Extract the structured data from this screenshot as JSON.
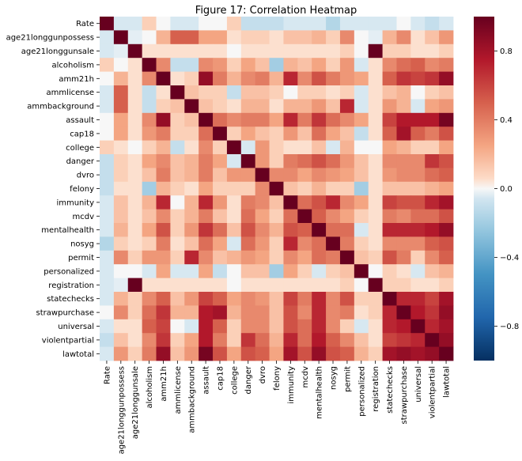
{
  "chart_data": {
    "type": "heatmap",
    "title": "Figure 17: Correlation Heatmap",
    "xlabel": "",
    "ylabel": "",
    "labels": [
      "Rate",
      "age21longgunpossess",
      "age21longgunsale",
      "alcoholism",
      "amm21h",
      "ammlicense",
      "ammbackground",
      "assault",
      "cap18",
      "college",
      "danger",
      "dvro",
      "felony",
      "immunity",
      "mcdv",
      "mentalhealth",
      "nosyg",
      "permit",
      "personalized",
      "registration",
      "statechecks",
      "strawpurchase",
      "universal",
      "violentpartial",
      "lawtotal"
    ],
    "colorbar": {
      "min": -1.0,
      "max": 1.0,
      "ticks": [
        -0.8,
        -0.4,
        0.0,
        0.4,
        0.8
      ],
      "tick_labels": [
        "−0.8",
        "−0.4",
        "0.0",
        "0.4",
        "0.8"
      ],
      "colormap": "RdBu_r"
    },
    "matrix": [
      [
        1.0,
        -0.05,
        -0.05,
        0.1,
        0.0,
        -0.05,
        -0.05,
        0.0,
        0.0,
        0.1,
        -0.1,
        -0.1,
        -0.1,
        -0.05,
        -0.05,
        -0.05,
        -0.15,
        -0.05,
        -0.05,
        -0.05,
        -0.05,
        0.0,
        -0.05,
        -0.1,
        -0.05
      ],
      [
        -0.05,
        1.0,
        -0.03,
        0.0,
        0.2,
        0.5,
        0.5,
        0.25,
        0.25,
        0.05,
        0.1,
        0.1,
        0.05,
        0.15,
        0.15,
        0.2,
        0.1,
        0.35,
        0.0,
        -0.03,
        0.2,
        0.35,
        0.05,
        0.15,
        0.3
      ],
      [
        -0.05,
        -0.03,
        1.0,
        0.05,
        0.05,
        0.05,
        0.05,
        0.05,
        0.05,
        0.0,
        0.05,
        0.05,
        0.05,
        0.05,
        0.05,
        0.05,
        0.05,
        0.1,
        0.0,
        1.0,
        0.1,
        0.1,
        0.05,
        0.05,
        0.1
      ],
      [
        0.1,
        0.0,
        0.05,
        1.0,
        0.35,
        -0.1,
        -0.1,
        0.35,
        0.3,
        0.1,
        0.25,
        0.15,
        -0.2,
        0.2,
        0.15,
        0.25,
        0.1,
        0.3,
        -0.05,
        0.05,
        0.35,
        0.45,
        0.5,
        0.35,
        0.4
      ],
      [
        0.0,
        0.2,
        0.05,
        0.35,
        1.0,
        0.05,
        0.1,
        0.85,
        0.4,
        0.2,
        0.35,
        0.4,
        0.2,
        0.7,
        0.35,
        0.55,
        0.4,
        0.3,
        0.25,
        0.05,
        0.5,
        0.65,
        0.6,
        0.65,
        0.85
      ],
      [
        -0.05,
        0.5,
        0.05,
        -0.1,
        0.05,
        1.0,
        0.15,
        0.1,
        0.1,
        -0.1,
        0.15,
        0.15,
        0.1,
        0.0,
        0.1,
        0.1,
        0.05,
        0.1,
        -0.05,
        0.05,
        0.15,
        0.2,
        0.0,
        0.1,
        0.15
      ],
      [
        -0.05,
        0.5,
        0.05,
        -0.1,
        0.1,
        0.15,
        1.0,
        0.15,
        0.1,
        0.05,
        0.2,
        0.2,
        0.05,
        0.2,
        0.2,
        0.3,
        0.15,
        0.7,
        -0.05,
        0.05,
        0.3,
        0.2,
        -0.05,
        0.25,
        0.3
      ],
      [
        0.0,
        0.25,
        0.05,
        0.35,
        0.85,
        0.1,
        0.15,
        1.0,
        0.45,
        0.35,
        0.4,
        0.4,
        0.25,
        0.7,
        0.4,
        0.65,
        0.45,
        0.35,
        0.25,
        0.05,
        0.6,
        0.75,
        0.75,
        0.75,
        0.95
      ],
      [
        0.0,
        0.25,
        0.05,
        0.3,
        0.4,
        0.1,
        0.1,
        0.45,
        1.0,
        0.1,
        0.25,
        0.15,
        0.1,
        0.3,
        0.15,
        0.45,
        0.25,
        0.15,
        -0.1,
        0.05,
        0.5,
        0.8,
        0.5,
        0.4,
        0.55
      ],
      [
        0.1,
        0.05,
        0.0,
        0.1,
        0.2,
        -0.1,
        0.05,
        0.35,
        0.1,
        1.0,
        -0.05,
        0.3,
        0.1,
        0.05,
        0.05,
        0.15,
        -0.05,
        0.2,
        0.0,
        0.0,
        0.25,
        0.2,
        0.1,
        0.1,
        0.25
      ],
      [
        -0.1,
        0.1,
        0.05,
        0.25,
        0.35,
        0.15,
        0.2,
        0.4,
        0.25,
        -0.05,
        1.0,
        0.3,
        0.1,
        0.4,
        0.45,
        0.55,
        0.45,
        0.3,
        0.15,
        0.05,
        0.35,
        0.35,
        0.35,
        0.65,
        0.55
      ],
      [
        -0.1,
        0.1,
        0.05,
        0.15,
        0.4,
        0.15,
        0.2,
        0.4,
        0.15,
        0.3,
        0.3,
        1.0,
        0.35,
        0.35,
        0.25,
        0.35,
        0.3,
        0.25,
        0.15,
        0.05,
        0.3,
        0.35,
        0.35,
        0.45,
        0.5
      ],
      [
        -0.1,
        0.05,
        0.05,
        -0.2,
        0.2,
        0.1,
        0.05,
        0.25,
        0.1,
        0.1,
        0.1,
        0.35,
        1.0,
        0.15,
        0.1,
        0.2,
        0.1,
        0.1,
        -0.2,
        0.05,
        0.15,
        0.15,
        0.15,
        0.2,
        0.25
      ],
      [
        -0.05,
        0.15,
        0.05,
        0.2,
        0.7,
        0.0,
        0.2,
        0.7,
        0.3,
        0.05,
        0.4,
        0.35,
        0.15,
        1.0,
        0.45,
        0.55,
        0.7,
        0.35,
        0.25,
        0.05,
        0.6,
        0.55,
        0.55,
        0.7,
        0.8
      ],
      [
        -0.05,
        0.15,
        0.05,
        0.15,
        0.35,
        0.1,
        0.2,
        0.4,
        0.15,
        0.05,
        0.45,
        0.25,
        0.1,
        0.45,
        1.0,
        0.5,
        0.35,
        0.25,
        0.1,
        0.05,
        0.4,
        0.35,
        0.45,
        0.45,
        0.55
      ],
      [
        -0.05,
        0.2,
        0.05,
        0.25,
        0.55,
        0.1,
        0.3,
        0.65,
        0.45,
        0.15,
        0.55,
        0.35,
        0.2,
        0.55,
        0.5,
        1.0,
        0.45,
        0.45,
        -0.05,
        0.05,
        0.7,
        0.7,
        0.7,
        0.75,
        0.85
      ],
      [
        -0.15,
        0.1,
        0.05,
        0.1,
        0.4,
        0.05,
        0.15,
        0.45,
        0.25,
        -0.05,
        0.45,
        0.3,
        0.1,
        0.7,
        0.35,
        0.45,
        1.0,
        0.4,
        0.1,
        0.05,
        0.35,
        0.35,
        0.35,
        0.5,
        0.55
      ],
      [
        -0.05,
        0.35,
        0.1,
        0.3,
        0.3,
        0.1,
        0.7,
        0.35,
        0.15,
        0.2,
        0.3,
        0.25,
        0.1,
        0.35,
        0.25,
        0.45,
        0.4,
        1.0,
        0.15,
        0.1,
        0.55,
        0.4,
        0.1,
        0.35,
        0.5
      ],
      [
        -0.05,
        0.0,
        0.0,
        -0.05,
        0.25,
        -0.05,
        -0.05,
        0.25,
        -0.1,
        0.0,
        0.15,
        0.15,
        -0.2,
        0.25,
        0.1,
        -0.05,
        0.1,
        0.15,
        1.0,
        0.0,
        0.1,
        0.05,
        -0.05,
        0.15,
        0.2
      ],
      [
        -0.05,
        -0.03,
        1.0,
        0.05,
        0.05,
        0.05,
        0.05,
        0.05,
        0.05,
        0.0,
        0.05,
        0.05,
        0.05,
        0.05,
        0.05,
        0.05,
        0.05,
        0.1,
        0.0,
        1.0,
        0.1,
        0.1,
        0.05,
        0.05,
        0.1
      ],
      [
        -0.05,
        0.2,
        0.1,
        0.35,
        0.5,
        0.15,
        0.3,
        0.6,
        0.5,
        0.25,
        0.35,
        0.3,
        0.15,
        0.6,
        0.4,
        0.7,
        0.35,
        0.55,
        0.1,
        0.1,
        1.0,
        0.7,
        0.7,
        0.6,
        0.8
      ],
      [
        0.0,
        0.35,
        0.1,
        0.45,
        0.65,
        0.2,
        0.2,
        0.75,
        0.8,
        0.2,
        0.35,
        0.35,
        0.15,
        0.55,
        0.35,
        0.7,
        0.35,
        0.4,
        0.05,
        0.1,
        0.7,
        1.0,
        0.75,
        0.65,
        0.85
      ],
      [
        -0.05,
        0.05,
        0.05,
        0.5,
        0.6,
        0.0,
        -0.05,
        0.75,
        0.5,
        0.1,
        0.35,
        0.35,
        0.15,
        0.55,
        0.45,
        0.7,
        0.35,
        0.1,
        -0.05,
        0.05,
        0.7,
        0.75,
        1.0,
        0.7,
        0.8
      ],
      [
        -0.1,
        0.15,
        0.05,
        0.35,
        0.65,
        0.1,
        0.25,
        0.75,
        0.4,
        0.1,
        0.65,
        0.45,
        0.2,
        0.7,
        0.45,
        0.75,
        0.5,
        0.35,
        0.15,
        0.05,
        0.6,
        0.65,
        0.7,
        1.0,
        0.85
      ],
      [
        -0.05,
        0.3,
        0.1,
        0.4,
        0.85,
        0.15,
        0.3,
        0.95,
        0.55,
        0.25,
        0.55,
        0.5,
        0.25,
        0.8,
        0.55,
        0.85,
        0.55,
        0.5,
        0.2,
        0.1,
        0.8,
        0.85,
        0.8,
        0.85,
        1.0
      ]
    ]
  }
}
